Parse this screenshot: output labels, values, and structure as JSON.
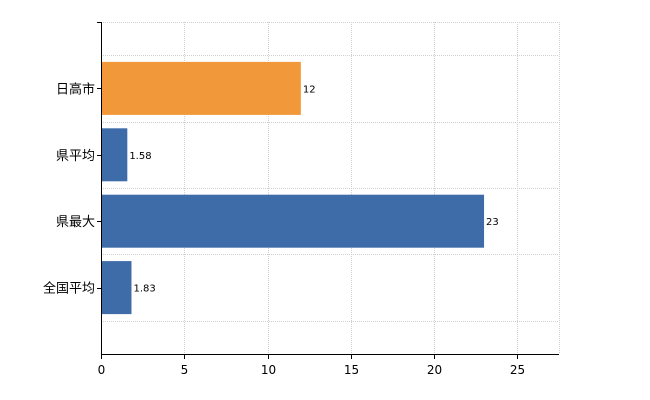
{
  "chart_data": {
    "type": "bar",
    "orientation": "horizontal",
    "categories": [
      "日高市",
      "県平均",
      "県最大",
      "全国平均"
    ],
    "values": [
      12,
      1.58,
      23,
      1.83
    ],
    "data_labels": [
      "12",
      "1.58",
      "23",
      "1.83"
    ],
    "bar_colors": [
      "#f0983a",
      "#3d6ca8",
      "#3d6ca8",
      "#3d6ca8"
    ],
    "x_ticks": [
      0,
      5,
      10,
      15,
      20,
      25
    ],
    "xlim": [
      0,
      27.5
    ],
    "grid": true,
    "title": "",
    "xlabel": "",
    "ylabel": ""
  }
}
